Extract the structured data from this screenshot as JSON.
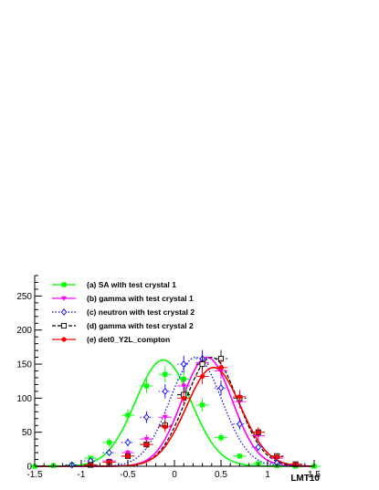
{
  "chart_data": {
    "type": "scatter",
    "xlabel": "LMT10",
    "ylabel": "",
    "xlim": [
      -1.5,
      1.5
    ],
    "ylim": [
      0,
      280
    ],
    "x_ticks": [
      -1.5,
      -1,
      -0.5,
      0,
      0.5,
      1,
      1.5
    ],
    "x_tick_labels": [
      "-1.5",
      "-1",
      "-0.5",
      "0",
      "0.5",
      "1",
      "1.5"
    ],
    "y_ticks": [
      0,
      50,
      100,
      150,
      200,
      250
    ],
    "y_tick_labels": [
      "0",
      "50",
      "100",
      "150",
      "200",
      "250"
    ],
    "grid": false,
    "legend_position": "top-left",
    "series": [
      {
        "name": "(a) SA with test crystal 1",
        "color": "#00ff00",
        "marker": "filled-square",
        "line": "solid",
        "x": [
          -1.5,
          -1.3,
          -1.1,
          -0.9,
          -0.7,
          -0.5,
          -0.3,
          -0.1,
          0.1,
          0.3,
          0.5,
          0.7,
          0.9,
          1.1,
          1.3,
          1.5
        ],
        "y": [
          0,
          1,
          2,
          12,
          35,
          75,
          118,
          135,
          128,
          90,
          42,
          15,
          4,
          1,
          0,
          0
        ],
        "fit_curve": {
          "mean": -0.12,
          "sigma": 0.3,
          "amplitude": 156
        }
      },
      {
        "name": "(b) gamma with test crystal 1",
        "color": "#ff00ff",
        "marker": "down-triangle",
        "line": "solid",
        "x": [
          -0.9,
          -0.7,
          -0.5,
          -0.3,
          -0.1,
          0.1,
          0.3,
          0.5,
          0.7,
          0.9,
          1.1,
          1.3
        ],
        "y": [
          2,
          8,
          20,
          40,
          72,
          118,
          152,
          140,
          95,
          45,
          12,
          2
        ],
        "fit_curve": {
          "mean": 0.35,
          "sigma": 0.27,
          "amplitude": 160
        }
      },
      {
        "name": "(c) neutron with test crystal 2",
        "color": "#0000ff",
        "marker": "open-diamond",
        "line": "dotted",
        "x": [
          -1.1,
          -0.9,
          -0.7,
          -0.5,
          -0.3,
          -0.1,
          0.1,
          0.3,
          0.5,
          0.7,
          0.9,
          1.1
        ],
        "y": [
          2,
          8,
          20,
          35,
          72,
          110,
          150,
          158,
          115,
          62,
          28,
          5
        ],
        "fit_curve": {
          "mean": 0.23,
          "sigma": 0.28,
          "amplitude": 160
        }
      },
      {
        "name": "(d) gamma with test crystal 2",
        "color": "#000000",
        "marker": "open-square",
        "line": "dashed",
        "x": [
          -0.9,
          -0.7,
          -0.5,
          -0.3,
          -0.1,
          0.1,
          0.3,
          0.5,
          0.7,
          0.9,
          1.1,
          1.3
        ],
        "y": [
          2,
          6,
          15,
          32,
          60,
          105,
          150,
          158,
          100,
          50,
          15,
          3
        ],
        "fit_curve": {
          "mean": 0.4,
          "sigma": 0.28,
          "amplitude": 160
        }
      },
      {
        "name": "(e) det0_Y2L_compton",
        "color": "#ff0000",
        "marker": "filled-circle",
        "line": "solid",
        "x": [
          -0.9,
          -0.7,
          -0.5,
          -0.3,
          -0.1,
          0.1,
          0.3,
          0.5,
          0.7,
          0.9,
          1.1,
          1.3
        ],
        "y": [
          2,
          6,
          15,
          32,
          58,
          100,
          132,
          145,
          102,
          50,
          14,
          3
        ],
        "fit_curve": {
          "mean": 0.42,
          "sigma": 0.29,
          "amplitude": 145
        }
      }
    ]
  }
}
